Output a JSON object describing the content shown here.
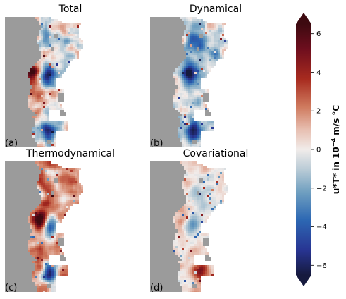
{
  "chart_data": {
    "type": "heatmap",
    "colormap": "diverging red-white-blue (balance)",
    "panels": [
      {
        "title": "Total",
        "label": "(a)"
      },
      {
        "title": "Dynamical",
        "label": "(b)"
      },
      {
        "title": "Thermodynamical",
        "label": "(c)"
      },
      {
        "title": "Covariational",
        "label": "(d)"
      }
    ],
    "land_color": "#9b9b9b",
    "colorbar": {
      "label_main": "u*T* in 10",
      "label_exp": "−4",
      "label_unit": " m/s °C",
      "range": [
        -6.5,
        6.5
      ],
      "ticks": [
        "6",
        "4",
        "2",
        "0",
        "−2",
        "−4",
        "−6"
      ],
      "tick_values": [
        6,
        4,
        2,
        0,
        -2,
        -4,
        -6
      ],
      "extend": "both"
    }
  }
}
